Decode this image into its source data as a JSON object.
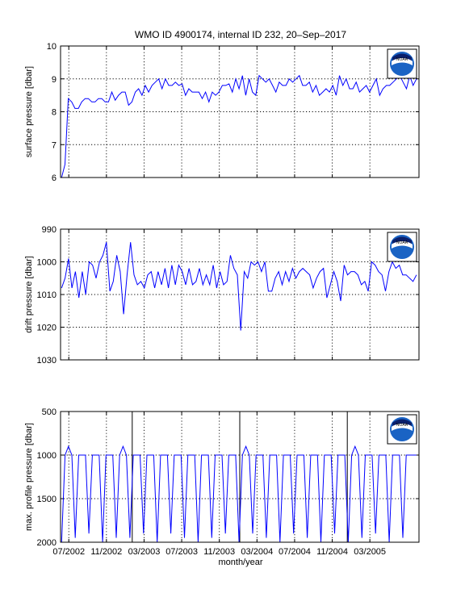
{
  "figure": {
    "title": "WMO ID 4900174, internal ID 232, 20–Sep–2017",
    "xlabel": "month/year",
    "xticks": [
      "07/2002",
      "11/2002",
      "03/2003",
      "07/2003",
      "11/2003",
      "03/2004",
      "07/2004",
      "11/2004",
      "03/2005"
    ]
  },
  "colors": {
    "series": "#0000ff",
    "logo_blue": "#1a63c4",
    "logo_navy": "#0a1f6b"
  },
  "logo_text": "NOAA",
  "chart_data": [
    {
      "type": "line",
      "ylabel": "surface pressure [dbar]",
      "ylim": [
        6,
        10
      ],
      "yticks": [
        "6",
        "7",
        "8",
        "9",
        "10"
      ],
      "y_reversed": false,
      "grid": true,
      "series": [
        {
          "values": [
            6.0,
            6.4,
            8.4,
            8.3,
            8.1,
            8.1,
            8.3,
            8.4,
            8.4,
            8.3,
            8.3,
            8.4,
            8.4,
            8.3,
            8.3,
            8.6,
            8.35,
            8.5,
            8.6,
            8.6,
            8.2,
            8.3,
            8.6,
            8.7,
            8.5,
            8.8,
            8.6,
            8.8,
            8.9,
            9.0,
            8.7,
            9.0,
            8.8,
            8.8,
            8.9,
            8.8,
            8.85,
            8.5,
            8.7,
            8.6,
            8.6,
            8.6,
            8.4,
            8.6,
            8.3,
            8.6,
            8.5,
            8.6,
            8.8,
            8.8,
            8.85,
            8.6,
            9.0,
            8.7,
            9.1,
            8.5,
            9.0,
            8.6,
            8.5,
            9.1,
            9.0,
            8.9,
            9.0,
            8.8,
            8.6,
            8.9,
            8.8,
            8.8,
            9.0,
            8.9,
            9.0,
            9.1,
            8.8,
            8.8,
            8.9,
            8.6,
            8.8,
            8.5,
            8.6,
            8.7,
            8.6,
            8.8,
            8.5,
            9.1,
            8.8,
            9.0,
            8.7,
            8.7,
            8.9,
            8.6,
            8.7,
            8.8,
            8.6,
            8.8,
            9.0,
            8.5,
            8.7,
            8.8,
            8.8,
            8.9,
            9.0,
            9.1,
            8.9,
            8.7,
            9.1,
            8.8,
            9.0
          ]
        }
      ]
    },
    {
      "type": "line",
      "ylabel": "drift pressure [dbar]",
      "ylim": [
        990,
        1030
      ],
      "yticks": [
        "990",
        "1000",
        "1010",
        "1020",
        "1030"
      ],
      "y_reversed": true,
      "grid": true,
      "series": [
        {
          "values": [
            1008,
            1005,
            999,
            1008,
            1003,
            1011,
            1003,
            1010,
            1000,
            1001,
            1005,
            1000,
            998,
            994,
            1009,
            1006,
            998,
            1003,
            1016,
            1004,
            994,
            1004,
            1007,
            1006,
            1008,
            1004,
            1003,
            1008,
            1003,
            1007,
            1002,
            1008,
            1001,
            1007,
            1001,
            1003,
            1007,
            1002,
            1007,
            1006,
            1002,
            1007,
            1004,
            1007,
            1001,
            1008,
            1003,
            1007,
            1006,
            998,
            1002,
            1004,
            1021,
            1003,
            1005,
            1000,
            1001,
            1000,
            1003,
            1000,
            1009,
            1009,
            1005,
            1003,
            1007,
            1003,
            1006,
            1002,
            1005,
            1003,
            1002,
            1003,
            1004,
            1008,
            1005,
            1003,
            1002,
            1011,
            1007,
            1003,
            1006,
            1012,
            1001,
            1004,
            1003,
            1003,
            1004,
            1007,
            1006,
            1009,
            1000,
            1001,
            1003,
            1004,
            1009,
            1003,
            1000,
            1002,
            1001,
            1004,
            1004,
            1005,
            1006,
            1004
          ]
        }
      ]
    },
    {
      "type": "line",
      "ylabel": "max. profile pressure [dbar]",
      "ylim": [
        500,
        2000
      ],
      "yticks": [
        "500",
        "1000",
        "1500",
        "2000"
      ],
      "y_reversed": true,
      "grid": true,
      "event_markers": [
        0.2,
        0.5,
        0.8
      ],
      "series": [
        {
          "values": [
            2000,
            1000,
            900,
            1000,
            1950,
            1000,
            1000,
            1000,
            1900,
            1000,
            1000,
            1000,
            2000,
            1000,
            1000,
            1000,
            1950,
            1000,
            900,
            1000,
            1950,
            1000,
            1000,
            1000,
            1900,
            1000,
            1000,
            1000,
            2000,
            1000,
            1000,
            1000,
            1900,
            1000,
            1000,
            1000,
            1950,
            1000,
            1000,
            1000,
            2000,
            1000,
            1000,
            1000,
            1950,
            1000,
            1000,
            1000,
            1900,
            1000,
            1000,
            1000,
            2000,
            1000,
            900,
            1000,
            1900,
            1000,
            1000,
            1000,
            1950,
            1000,
            1000,
            1000,
            2000,
            1000,
            1000,
            1000,
            1900,
            1000,
            1000,
            1000,
            1950,
            1000,
            1000,
            1000,
            2000,
            1000,
            1000,
            1000,
            1900,
            1000,
            1000,
            1000,
            2000,
            1000,
            900,
            1000,
            1950,
            1000,
            1000,
            1000,
            1900,
            1000,
            1000,
            1000,
            2000,
            1000,
            1000,
            1000,
            1950,
            1000,
            1000,
            1000,
            1000
          ]
        }
      ]
    }
  ]
}
